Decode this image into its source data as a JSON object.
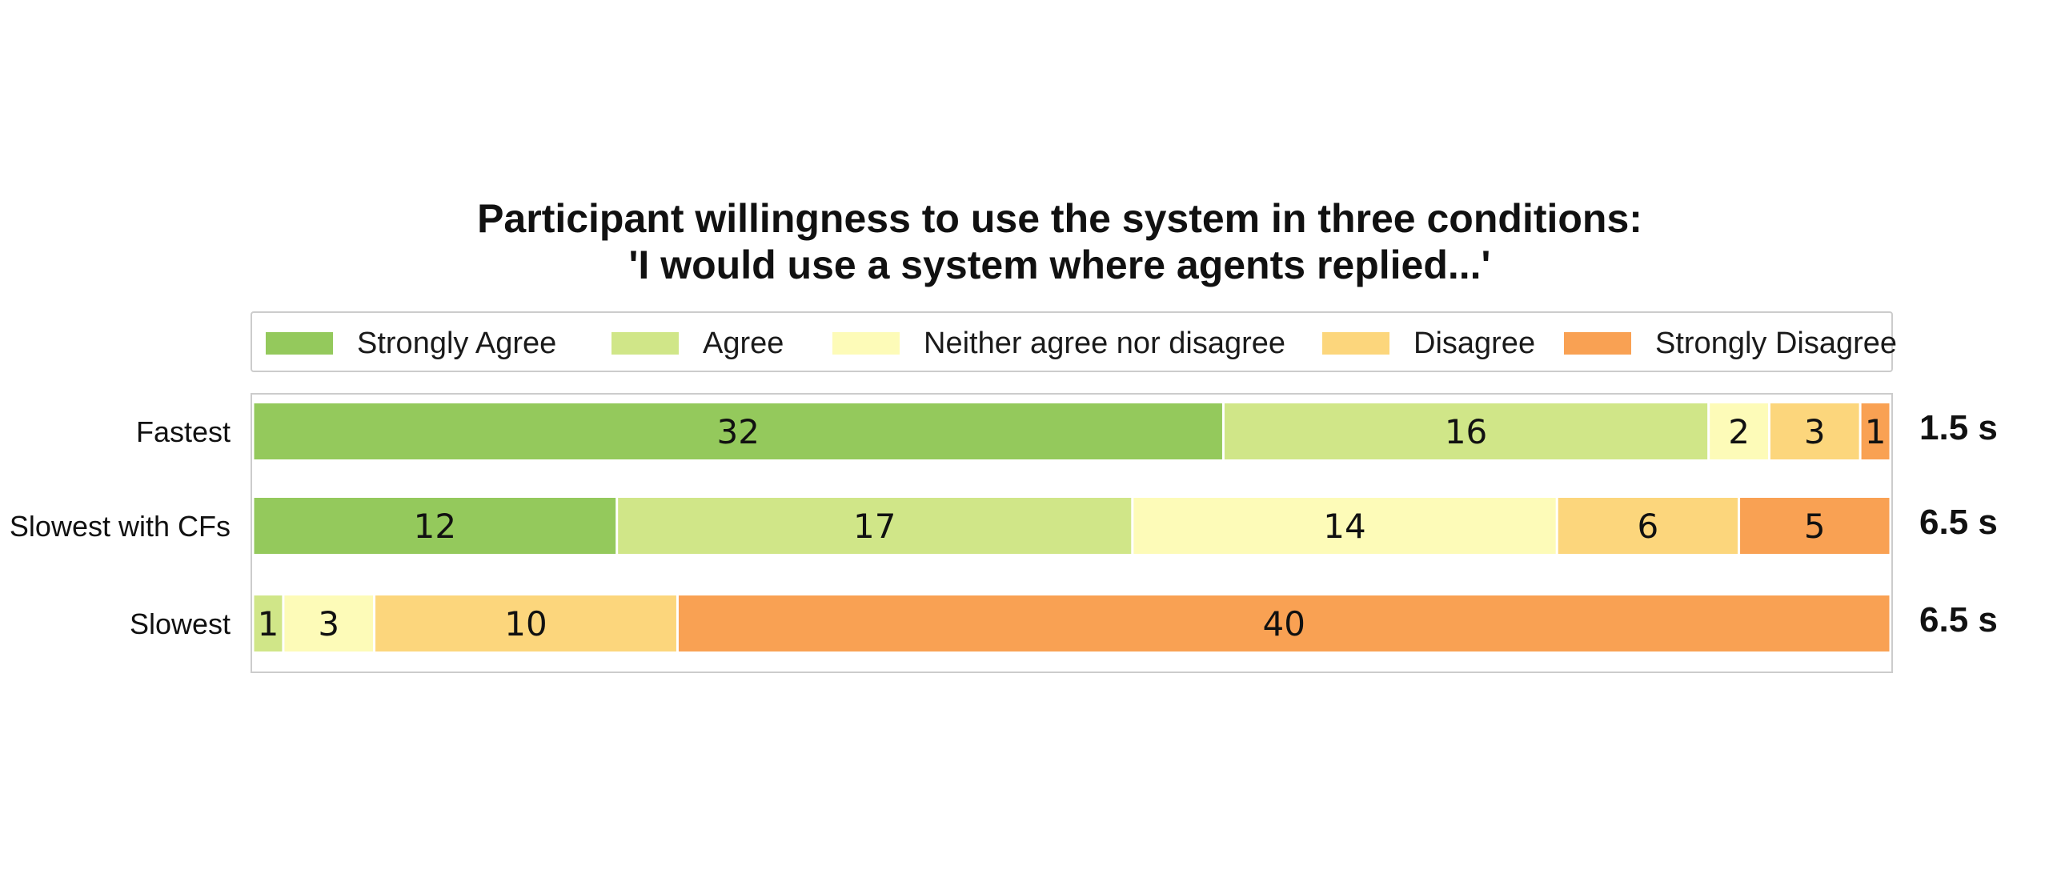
{
  "chart_data": {
    "type": "bar",
    "orientation": "horizontal",
    "stacked": true,
    "title_lines": [
      "Participant willingness to use the system in three conditions:",
      "'I would use a system where agents replied...'"
    ],
    "categories": [
      "Fastest",
      "Slowest with CFs",
      "Slowest"
    ],
    "series": [
      {
        "name": "Strongly Agree",
        "color": "#94c95c",
        "values": [
          32,
          12,
          0
        ]
      },
      {
        "name": "Agree",
        "color": "#d0e688",
        "values": [
          16,
          17,
          1
        ]
      },
      {
        "name": "Neither agree nor disagree",
        "color": "#fdfbb8",
        "values": [
          2,
          14,
          3
        ]
      },
      {
        "name": "Disagree",
        "color": "#fcd67c",
        "values": [
          3,
          6,
          10
        ]
      },
      {
        "name": "Strongly Disagree",
        "color": "#f9a153",
        "values": [
          1,
          5,
          40
        ]
      }
    ],
    "side_labels": [
      "1.5 s",
      "6.5 s",
      "6.5 s"
    ],
    "legend_position": "top",
    "grid": false,
    "frame_color": "#cccccc"
  }
}
